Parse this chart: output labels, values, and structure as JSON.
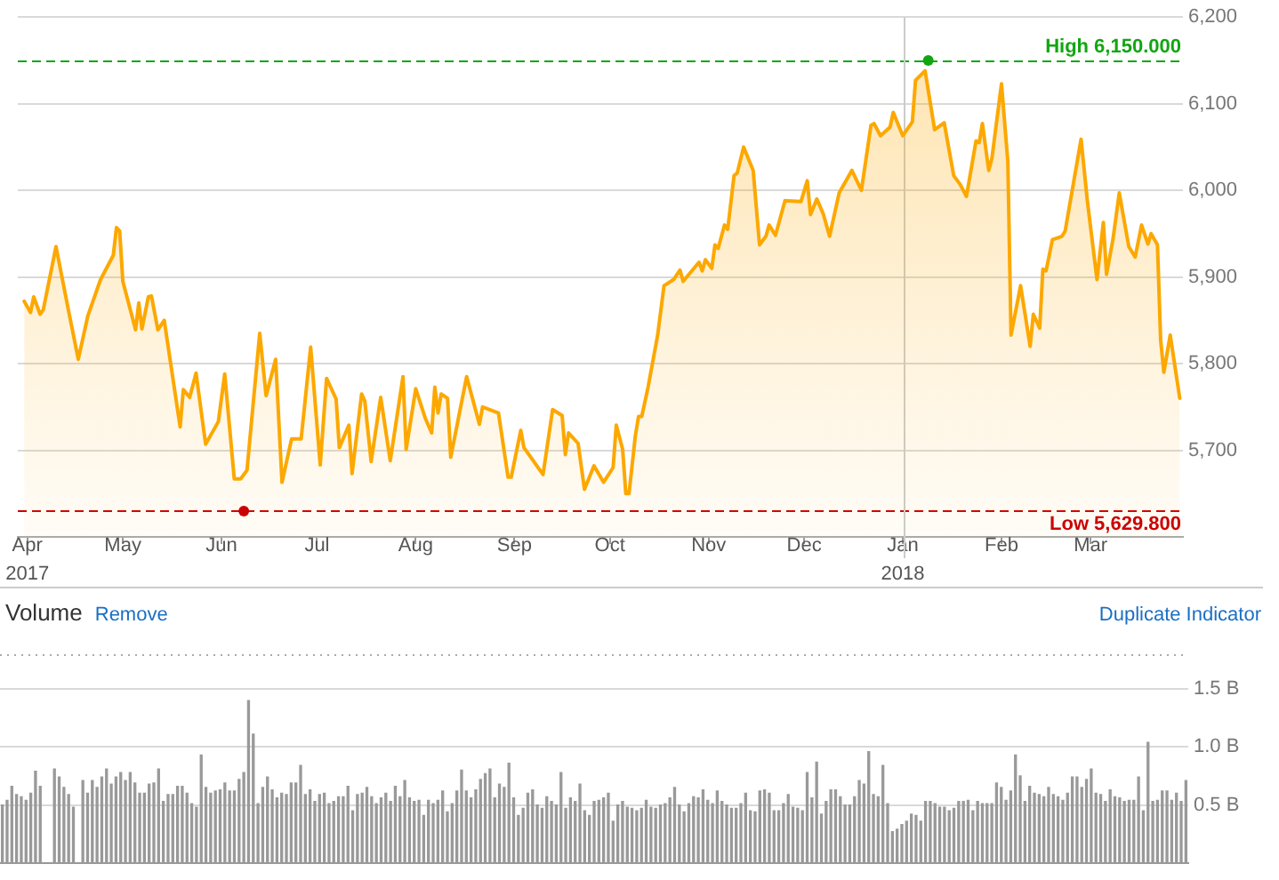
{
  "chart_data": [
    {
      "type": "area",
      "x": [
        "2017-03-31",
        "2017-04-02",
        "2017-04-03",
        "2017-04-05",
        "2017-04-06",
        "2017-04-10",
        "2017-04-14",
        "2017-04-17",
        "2017-04-20",
        "2017-04-24",
        "2017-04-28",
        "2017-04-29",
        "2017-04-30",
        "2017-05-01",
        "2017-05-05",
        "2017-05-06",
        "2017-05-07",
        "2017-05-09",
        "2017-05-10",
        "2017-05-12",
        "2017-05-14",
        "2017-05-19",
        "2017-05-20",
        "2017-05-22",
        "2017-05-24",
        "2017-05-27",
        "2017-05-31",
        "2017-06-02",
        "2017-06-05",
        "2017-06-07",
        "2017-06-09",
        "2017-06-13",
        "2017-06-15",
        "2017-06-18",
        "2017-06-20",
        "2017-06-23",
        "2017-06-26",
        "2017-06-29",
        "2017-07-02",
        "2017-07-04",
        "2017-07-07",
        "2017-07-08",
        "2017-07-11",
        "2017-07-12",
        "2017-07-15",
        "2017-07-16",
        "2017-07-18",
        "2017-07-21",
        "2017-07-24",
        "2017-07-28",
        "2017-07-29",
        "2017-08-01",
        "2017-08-04",
        "2017-08-06",
        "2017-08-07",
        "2017-08-08",
        "2017-08-09",
        "2017-08-11",
        "2017-08-12",
        "2017-08-17",
        "2017-08-21",
        "2017-08-22",
        "2017-08-27",
        "2017-08-30",
        "2017-08-31",
        "2017-09-03",
        "2017-09-04",
        "2017-09-10",
        "2017-09-13",
        "2017-09-16",
        "2017-09-17",
        "2017-09-18",
        "2017-09-21",
        "2017-09-23",
        "2017-09-26",
        "2017-09-29",
        "2017-10-02",
        "2017-10-03",
        "2017-10-05",
        "2017-10-06",
        "2017-10-07",
        "2017-10-09",
        "2017-10-10",
        "2017-10-11",
        "2017-10-13",
        "2017-10-16",
        "2017-10-18",
        "2017-10-21",
        "2017-10-23",
        "2017-10-24",
        "2017-10-29",
        "2017-10-30",
        "2017-10-31",
        "2017-11-02",
        "2017-11-03",
        "2017-11-04",
        "2017-11-06",
        "2017-11-07",
        "2017-11-09",
        "2017-11-10",
        "2017-11-12",
        "2017-11-15",
        "2017-11-17",
        "2017-11-19",
        "2017-11-20",
        "2017-11-22",
        "2017-11-25",
        "2017-11-30",
        "2017-12-02",
        "2017-12-03",
        "2017-12-05",
        "2017-12-07",
        "2017-12-09",
        "2017-12-12",
        "2017-12-16",
        "2017-12-19",
        "2017-12-22",
        "2017-12-23",
        "2017-12-25",
        "2017-12-28",
        "2017-12-29",
        "2018-01-01",
        "2018-01-04",
        "2018-01-05",
        "2018-01-08",
        "2018-01-11",
        "2018-01-14",
        "2018-01-17",
        "2018-01-19",
        "2018-01-21",
        "2018-01-24",
        "2018-01-25",
        "2018-01-26",
        "2018-01-28",
        "2018-01-29",
        "2018-02-01",
        "2018-02-03",
        "2018-02-04",
        "2018-02-07",
        "2018-02-10",
        "2018-02-11",
        "2018-02-13",
        "2018-02-14",
        "2018-02-15",
        "2018-02-17",
        "2018-02-20",
        "2018-02-21",
        "2018-02-26",
        "2018-02-28",
        "2018-03-03",
        "2018-03-05",
        "2018-03-06",
        "2018-03-08",
        "2018-03-10",
        "2018-03-13",
        "2018-03-15",
        "2018-03-17",
        "2018-03-19",
        "2018-03-20",
        "2018-03-22",
        "2018-03-23",
        "2018-03-24",
        "2018-03-26",
        "2018-03-29"
      ],
      "series": [
        {
          "color": "#fca800",
          "values": [
            5872,
            5859,
            5877,
            5857,
            5862,
            5935,
            5860,
            5805,
            5855,
            5897,
            5925,
            5957,
            5953,
            5895,
            5839,
            5870,
            5840,
            5877,
            5878,
            5839,
            5850,
            5727,
            5770,
            5761,
            5789,
            5707,
            5733,
            5788,
            5667,
            5667,
            5677,
            5835,
            5763,
            5805,
            5663,
            5713,
            5713,
            5819,
            5683,
            5783,
            5759,
            5703,
            5729,
            5673,
            5765,
            5757,
            5687,
            5761,
            5688,
            5785,
            5701,
            5771,
            5737,
            5720,
            5773,
            5743,
            5765,
            5760,
            5692,
            5785,
            5730,
            5750,
            5743,
            5669,
            5669,
            5723,
            5703,
            5672,
            5747,
            5740,
            5695,
            5720,
            5708,
            5655,
            5682,
            5663,
            5680,
            5729,
            5701,
            5650,
            5650,
            5717,
            5739,
            5739,
            5773,
            5833,
            5890,
            5897,
            5908,
            5895,
            5917,
            5907,
            5920,
            5910,
            5937,
            5933,
            5960,
            5955,
            6017,
            6020,
            6050,
            6023,
            5937,
            5947,
            5960,
            5948,
            5988,
            5987,
            6011,
            5972,
            5990,
            5973,
            5947,
            5997,
            6023,
            6000,
            6075,
            6077,
            6063,
            6073,
            6090,
            6063,
            6079,
            6127,
            6138,
            6070,
            6078,
            6017,
            6007,
            5993,
            6057,
            6055,
            6077,
            6023,
            6037,
            6123,
            6033,
            5833,
            5890,
            5820,
            5857,
            5841,
            5909,
            5907,
            5943,
            5947,
            5953,
            6059,
            5987,
            5897,
            5963,
            5903,
            5943,
            5997,
            5935,
            5923,
            5960,
            5938,
            5950,
            5937,
            5827,
            5790,
            5833,
            5760
          ]
        },
        {
          "type": "scatter",
          "x": [
            "2017-06-08",
            "2018-01-09"
          ],
          "values": [
            5629.8,
            6150
          ],
          "colors": [
            "#cc0000",
            "#11a611"
          ]
        }
      ],
      "xlim": [
        "2017-03-29",
        "2018-03-30"
      ],
      "xticks": [
        {
          "value": "2017-04-01",
          "label": "Apr\n2017"
        },
        {
          "value": "2017-05-01",
          "label": "May"
        },
        {
          "value": "2017-06-01",
          "label": "Jun"
        },
        {
          "value": "2017-07-01",
          "label": "Jul"
        },
        {
          "value": "2017-08-01",
          "label": "Aug"
        },
        {
          "value": "2017-09-01",
          "label": "Sep"
        },
        {
          "value": "2017-10-01",
          "label": "Oct"
        },
        {
          "value": "2017-11-01",
          "label": "Nov"
        },
        {
          "value": "2017-12-01",
          "label": "Dec"
        },
        {
          "value": "2018-01-01",
          "label": "Jan\n2018"
        },
        {
          "value": "2018-02-01",
          "label": "Feb"
        },
        {
          "value": "2018-03-01",
          "label": "Mar"
        }
      ],
      "ylim": [
        5600,
        6200
      ],
      "yticks": [
        {
          "value": 5700,
          "label": "5,700"
        },
        {
          "value": 5800,
          "label": "5,800"
        },
        {
          "value": 5900,
          "label": "5,900"
        },
        {
          "value": 6000,
          "label": "6,000"
        },
        {
          "value": 6100,
          "label": "6,100"
        },
        {
          "value": 6200,
          "label": "6,200"
        }
      ],
      "ref_lines": [
        {
          "axis": "y",
          "value": 6150,
          "label": "High 6,150.000",
          "color": "#11a611",
          "line_style": "dashed"
        },
        {
          "axis": "y",
          "value": 5629.8,
          "label": "Low 5,629.800",
          "color": "#cc0000",
          "line_style": "dashed"
        },
        {
          "axis": "x",
          "value": "2018-01-01",
          "color": "#cccccc"
        }
      ],
      "grid": "y"
    },
    {
      "type": "bar",
      "title": "Volume",
      "annotations": [
        "Remove",
        "Duplicate Indicator"
      ],
      "categories": [
        null,
        null,
        null,
        null,
        null,
        null,
        null,
        null,
        null,
        null,
        null,
        null,
        null,
        null,
        null,
        null,
        null,
        null,
        null,
        null,
        null,
        null,
        null,
        null,
        null,
        null,
        null,
        null,
        null,
        null,
        null,
        null,
        null,
        null,
        null,
        null,
        null,
        null,
        null,
        null,
        null,
        null,
        null,
        null,
        null,
        null,
        null,
        null,
        null,
        null,
        null,
        null,
        null,
        null,
        null,
        null,
        null,
        null,
        null,
        null,
        null,
        null,
        null,
        null,
        null,
        null,
        null,
        null,
        null,
        null,
        null,
        null,
        null,
        null,
        null,
        null,
        null,
        null,
        null,
        null,
        null,
        null,
        null,
        null,
        null,
        null,
        null,
        null,
        null,
        null,
        null,
        null,
        null,
        null,
        null,
        null,
        null,
        null,
        null,
        null,
        null,
        null,
        null,
        null,
        null,
        null,
        null,
        null,
        null,
        null,
        null,
        null,
        null,
        null,
        null,
        null,
        null,
        null,
        null,
        null,
        null,
        null,
        null,
        null,
        null,
        null,
        null,
        null,
        null,
        null,
        null,
        null,
        null,
        null,
        null,
        null,
        null,
        null,
        null,
        null,
        null,
        null,
        null,
        null,
        null,
        null,
        null,
        null,
        null,
        null,
        null,
        null,
        null,
        null,
        null,
        null,
        null,
        null,
        null,
        null,
        null,
        null,
        null,
        null,
        null,
        null,
        null,
        null,
        null,
        null,
        null,
        null,
        null,
        null,
        null,
        null,
        null,
        null,
        null,
        null,
        null,
        null,
        null,
        null,
        null,
        null,
        null,
        null,
        null,
        null,
        null,
        null,
        null,
        null,
        null,
        null,
        null,
        null,
        null,
        null,
        null,
        null,
        null,
        null,
        null,
        null,
        null,
        null,
        null,
        null,
        null,
        null,
        null,
        null,
        null,
        null,
        null,
        null,
        null,
        null,
        null,
        null,
        null,
        null,
        null,
        null,
        null,
        null,
        null,
        null,
        null,
        null,
        null,
        null,
        null,
        null,
        null,
        null,
        null,
        null,
        null,
        null,
        null,
        null,
        null,
        null,
        null,
        null,
        null,
        null,
        null
      ],
      "values": [
        0.5,
        0.54,
        0.66,
        0.59,
        0.57,
        0.54,
        0.6,
        0.79,
        0.66,
        null,
        null,
        0.81,
        0.74,
        0.65,
        0.59,
        0.48,
        null,
        0.71,
        0.6,
        0.71,
        0.65,
        0.74,
        0.81,
        0.68,
        0.74,
        0.78,
        0.71,
        0.78,
        0.69,
        0.6,
        0.6,
        0.68,
        0.69,
        0.81,
        0.53,
        0.59,
        0.59,
        0.66,
        0.66,
        0.6,
        0.51,
        0.48,
        0.93,
        0.65,
        0.6,
        0.62,
        0.63,
        0.69,
        0.62,
        0.62,
        0.72,
        0.78,
        1.4,
        1.11,
        0.51,
        0.65,
        0.74,
        0.63,
        0.56,
        0.6,
        0.59,
        0.69,
        0.69,
        0.84,
        0.59,
        0.63,
        0.53,
        0.59,
        0.6,
        0.51,
        0.53,
        0.57,
        0.57,
        0.66,
        0.45,
        0.59,
        0.6,
        0.65,
        0.57,
        0.51,
        0.56,
        0.6,
        0.53,
        0.66,
        0.57,
        0.71,
        0.56,
        0.53,
        0.54,
        0.41,
        0.54,
        0.51,
        0.54,
        0.62,
        0.44,
        0.51,
        0.62,
        0.8,
        0.62,
        0.56,
        0.63,
        0.72,
        0.77,
        0.81,
        0.56,
        0.68,
        0.65,
        0.86,
        0.56,
        0.41,
        0.47,
        0.6,
        0.63,
        0.5,
        0.47,
        0.57,
        0.53,
        0.5,
        0.78,
        0.47,
        0.56,
        0.53,
        0.68,
        0.45,
        0.41,
        0.53,
        0.54,
        0.56,
        0.6,
        0.36,
        0.5,
        0.53,
        0.48,
        0.47,
        0.45,
        0.47,
        0.54,
        0.48,
        0.47,
        0.5,
        0.51,
        0.56,
        0.65,
        0.5,
        0.44,
        0.51,
        0.57,
        0.56,
        0.63,
        0.54,
        0.51,
        0.62,
        0.53,
        0.5,
        0.47,
        0.47,
        0.51,
        0.6,
        0.45,
        0.44,
        0.62,
        0.63,
        0.6,
        0.45,
        0.45,
        0.51,
        0.59,
        0.48,
        0.47,
        0.45,
        0.78,
        0.56,
        0.87,
        0.42,
        0.53,
        0.63,
        0.63,
        0.57,
        0.5,
        0.5,
        0.57,
        0.71,
        0.68,
        0.96,
        0.59,
        0.57,
        0.84,
        0.51,
        0.27,
        0.29,
        0.33,
        0.36,
        0.42,
        0.41,
        0.36,
        0.53,
        0.53,
        0.51,
        0.48,
        0.48,
        0.45,
        0.47,
        0.53,
        0.53,
        0.54,
        0.45,
        0.53,
        0.51,
        0.51,
        0.51,
        0.69,
        0.65,
        0.54,
        0.62,
        0.93,
        0.75,
        0.53,
        0.66,
        0.6,
        0.59,
        0.57,
        0.65,
        0.59,
        0.57,
        0.54,
        0.6,
        0.74,
        0.74,
        0.65,
        0.72,
        0.81,
        0.6,
        0.59,
        0.53,
        0.63,
        0.57,
        0.56,
        0.53,
        0.54,
        0.54,
        0.74,
        0.45,
        1.04,
        0.53,
        0.54,
        0.62,
        0.62,
        0.54,
        0.6,
        0.53,
        0.71
      ],
      "color": "#999999",
      "ylim": [
        0,
        1.8
      ],
      "yticks": [
        {
          "value": 0.5,
          "label": "0.5 B"
        },
        {
          "value": 1,
          "label": "1.0 B"
        },
        {
          "value": 1.5,
          "label": "1.5 B"
        }
      ],
      "grid": "y",
      "tick_labels": "y"
    }
  ]
}
